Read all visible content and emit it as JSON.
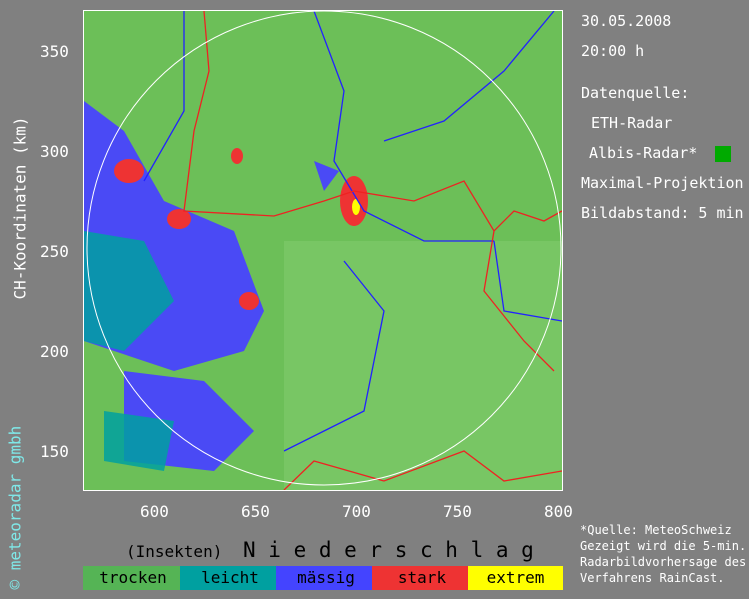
{
  "info": {
    "date": "30.05.2008",
    "time": "20:00 h",
    "source_label": "Datenquelle:",
    "source1": "ETH-Radar",
    "source2": "Albis-Radar*",
    "source2_color": "#00aa00",
    "projection": "Maximal-Projektion",
    "interval": "Bildabstand: 5 min"
  },
  "axes": {
    "y_label": "CH-Koordinaten (km)",
    "x_ticks": [
      "600",
      "650",
      "700",
      "750",
      "800"
    ],
    "y_ticks": [
      "350",
      "300",
      "250",
      "200",
      "150"
    ]
  },
  "copyright": "© meteoradar gmbh",
  "footnote": [
    "*Quelle: MeteoSchweiz",
    "Gezeigt wird die 5-min.",
    "Radarbildvorhersage des",
    "Verfahrens RainCast."
  ],
  "legend": {
    "insects_label": "(Insekten)",
    "title": "N i e d e r s c h l a g",
    "items": [
      {
        "label": "trocken",
        "color": "#55b455"
      },
      {
        "label": "leicht",
        "color": "#00a0a0"
      },
      {
        "label": "mässig",
        "color": "#4444ff"
      },
      {
        "label": "stark",
        "color": "#ee3333"
      },
      {
        "label": "extrem",
        "color": "#ffff00"
      }
    ]
  }
}
